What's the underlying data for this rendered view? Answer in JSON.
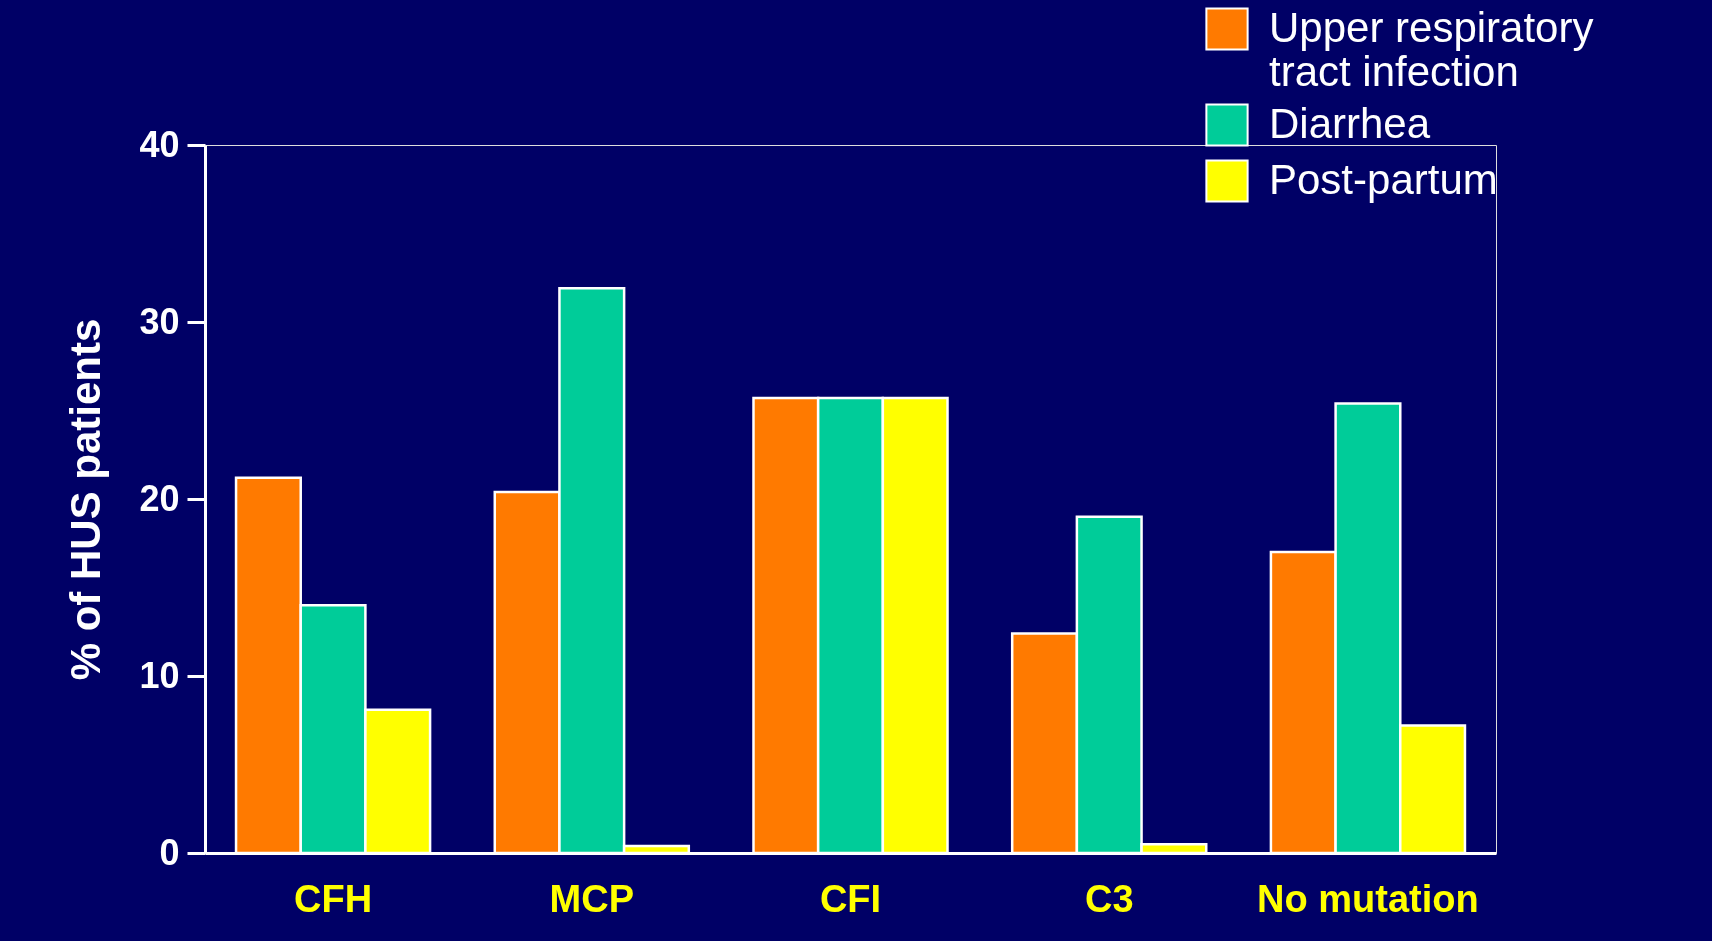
{
  "chart_data": {
    "type": "bar",
    "ylabel": "% of HUS patients",
    "categories": [
      "CFH",
      "MCP",
      "CFI",
      "C3",
      "No mutation"
    ],
    "series": [
      {
        "name": "Upper respiratory tract infection",
        "color": "#ff7a00",
        "values": [
          21.2,
          20.4,
          25.7,
          12.4,
          17.0
        ]
      },
      {
        "name": "Diarrhea",
        "color": "#00cc99",
        "values": [
          14.0,
          31.9,
          25.7,
          19.0,
          25.4
        ]
      },
      {
        "name": "Post-partum",
        "color": "#ffff00",
        "values": [
          8.1,
          0.4,
          25.7,
          0.5,
          7.2
        ]
      }
    ],
    "ylim": [
      0,
      40
    ],
    "yticks": [
      0,
      10,
      20,
      30,
      40
    ],
    "grid": false,
    "legend": "top right"
  }
}
